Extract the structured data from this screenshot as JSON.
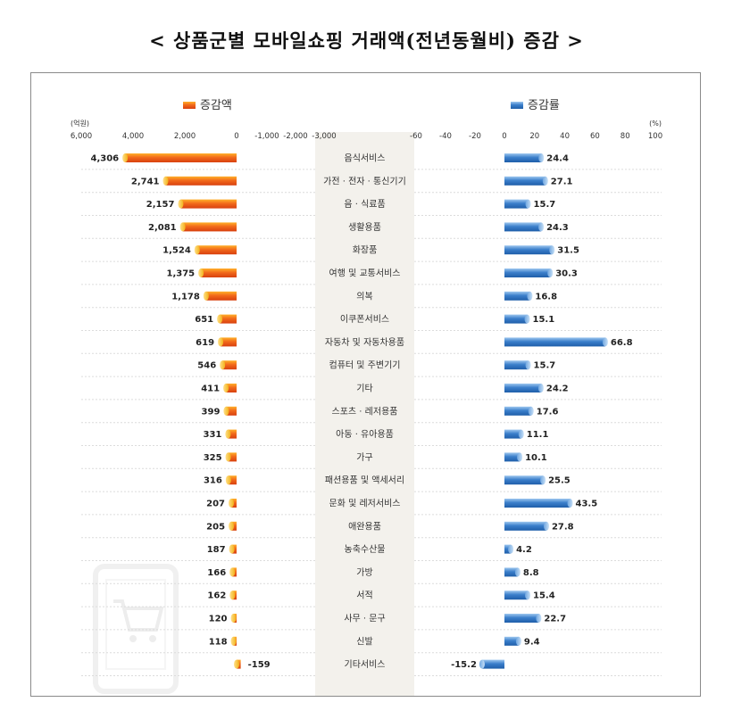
{
  "title": "< 상품군별 모바일쇼핑 거래액(전년동월비) 증감 >",
  "chart_data": [
    {
      "type": "bar",
      "orientation": "horizontal",
      "legend": "증감액",
      "unit_label": "(억원)",
      "xlim": [
        6000,
        -3000
      ],
      "ticks": [
        6000,
        4000,
        2000,
        0,
        -1000,
        -2000,
        -3000
      ],
      "tick_labels": [
        "6,000",
        "4,000",
        "2,000",
        "0",
        "-1,000",
        "-2,000",
        "-3,000"
      ],
      "color": "#e8541b",
      "categories": [
        "음식서비스",
        "가전 · 전자 · 통신기기",
        "음 · 식료품",
        "생활용품",
        "화장품",
        "여행 및 교통서비스",
        "의복",
        "이쿠폰서비스",
        "자동차 및 자동차용품",
        "컴퓨터 및 주변기기",
        "기타",
        "스포츠 · 레저용품",
        "아동 · 유아용품",
        "가구",
        "패션용품 및 액세서리",
        "문화 및 레저서비스",
        "애완용품",
        "농축수산물",
        "가방",
        "서적",
        "사무 · 문구",
        "신발",
        "기타서비스"
      ],
      "values": [
        4306,
        2741,
        2157,
        2081,
        1524,
        1375,
        1178,
        651,
        619,
        546,
        411,
        399,
        331,
        325,
        316,
        207,
        205,
        187,
        166,
        162,
        120,
        118,
        -159
      ],
      "value_labels": [
        "4,306",
        "2,741",
        "2,157",
        "2,081",
        "1,524",
        "1,375",
        "1,178",
        "651",
        "619",
        "546",
        "411",
        "399",
        "331",
        "325",
        "316",
        "207",
        "205",
        "187",
        "166",
        "162",
        "120",
        "118",
        "-159"
      ]
    },
    {
      "type": "bar",
      "orientation": "horizontal",
      "legend": "증감률",
      "unit_label": "(%)",
      "xlim": [
        -60,
        100
      ],
      "ticks": [
        -60,
        -40,
        -20,
        0,
        20,
        40,
        60,
        80,
        100
      ],
      "tick_labels": [
        "-60",
        "-40",
        "-20",
        "0",
        "20",
        "40",
        "60",
        "80",
        "100"
      ],
      "color": "#2f6db5",
      "categories": [
        "음식서비스",
        "가전 · 전자 · 통신기기",
        "음 · 식료품",
        "생활용품",
        "화장품",
        "여행 및 교통서비스",
        "의복",
        "이쿠폰서비스",
        "자동차 및 자동차용품",
        "컴퓨터 및 주변기기",
        "기타",
        "스포츠 · 레저용품",
        "아동 · 유아용품",
        "가구",
        "패션용품 및 액세서리",
        "문화 및 레저서비스",
        "애완용품",
        "농축수산물",
        "가방",
        "서적",
        "사무 · 문구",
        "신발",
        "기타서비스"
      ],
      "values": [
        24.4,
        27.1,
        15.7,
        24.3,
        31.5,
        30.3,
        16.8,
        15.1,
        66.8,
        15.7,
        24.2,
        17.6,
        11.1,
        10.1,
        25.5,
        43.5,
        27.8,
        4.2,
        8.8,
        15.4,
        22.7,
        9.4,
        -15.2
      ],
      "value_labels": [
        "24.4",
        "27.1",
        "15.7",
        "24.3",
        "31.5",
        "30.3",
        "16.8",
        "15.1",
        "66.8",
        "15.7",
        "24.2",
        "17.6",
        "11.1",
        "10.1",
        "25.5",
        "43.5",
        "27.8",
        "4.2",
        "8.8",
        "15.4",
        "22.7",
        "9.4",
        "-15.2"
      ]
    }
  ]
}
